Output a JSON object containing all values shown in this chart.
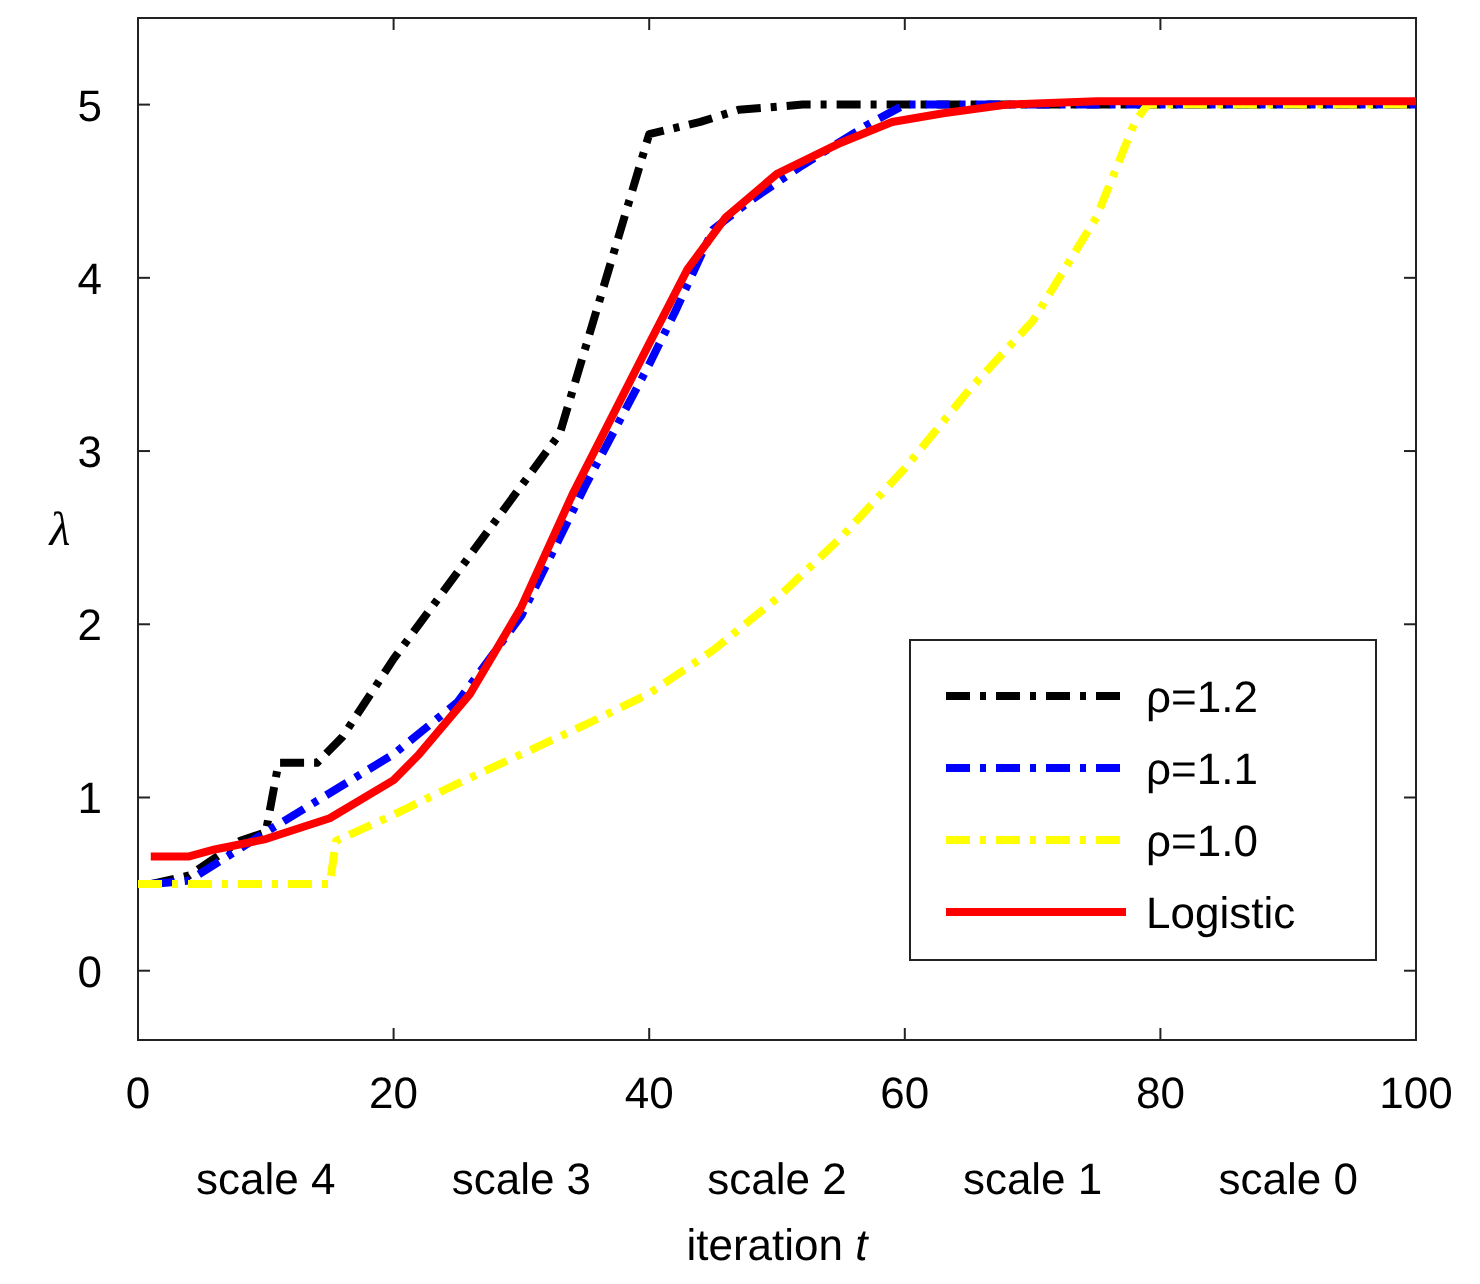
{
  "chart_data": {
    "type": "line",
    "xlabel": "iteration t",
    "ylabel": "λ",
    "xlim": [
      0,
      100
    ],
    "ylim": [
      -0.4,
      5.5
    ],
    "xticks": [
      0,
      20,
      40,
      60,
      80,
      100
    ],
    "yticks": [
      0,
      1,
      2,
      3,
      4,
      5
    ],
    "grid": false,
    "legend": "bottom right",
    "marker": "none",
    "annotations": [
      "scale 4",
      "scale 3",
      "scale 2",
      "scale 1",
      "scale 0"
    ],
    "series": [
      {
        "name": "ρ=1.2",
        "color": "#000000",
        "line_style": "dashdot",
        "x": [
          1,
          4,
          8,
          10,
          11,
          14,
          16,
          20,
          25,
          30,
          33,
          40,
          44,
          47,
          52,
          100
        ],
        "values": [
          0.5,
          0.55,
          0.75,
          0.8,
          1.2,
          1.2,
          1.35,
          1.8,
          2.3,
          2.8,
          3.1,
          4.83,
          4.9,
          4.97,
          5,
          5
        ]
      },
      {
        "name": "ρ=1.1",
        "color": "#0000ff",
        "line_style": "dashdot",
        "x": [
          1,
          4,
          10,
          20,
          25,
          30,
          35,
          40,
          42,
          45,
          48,
          52,
          57,
          60,
          100
        ],
        "values": [
          0.5,
          0.52,
          0.8,
          1.25,
          1.55,
          2.05,
          2.8,
          3.5,
          3.8,
          4.28,
          4.45,
          4.65,
          4.88,
          5,
          5
        ]
      },
      {
        "name": "ρ=1.0",
        "color": "#ffff00",
        "line_style": "dashdot",
        "x": [
          0,
          15,
          15.5,
          20,
          25,
          30,
          35,
          40,
          45,
          50,
          55,
          60,
          65,
          70,
          75,
          78,
          79,
          100
        ],
        "values": [
          0.5,
          0.5,
          0.75,
          0.9,
          1.08,
          1.25,
          1.42,
          1.6,
          1.85,
          2.15,
          2.5,
          2.9,
          3.35,
          3.75,
          4.35,
          4.9,
          5,
          5
        ]
      },
      {
        "name": "Logistic",
        "color": "#ff0000",
        "line_style": "solid",
        "x": [
          1,
          4,
          6,
          10,
          15,
          20,
          22,
          26,
          30,
          34,
          40,
          43,
          46,
          50,
          55,
          59,
          63,
          68,
          75,
          100
        ],
        "values": [
          0.66,
          0.66,
          0.7,
          0.76,
          0.88,
          1.1,
          1.25,
          1.6,
          2.1,
          2.75,
          3.62,
          4.05,
          4.35,
          4.6,
          4.78,
          4.9,
          4.95,
          5,
          5.02,
          5.02
        ]
      }
    ]
  }
}
